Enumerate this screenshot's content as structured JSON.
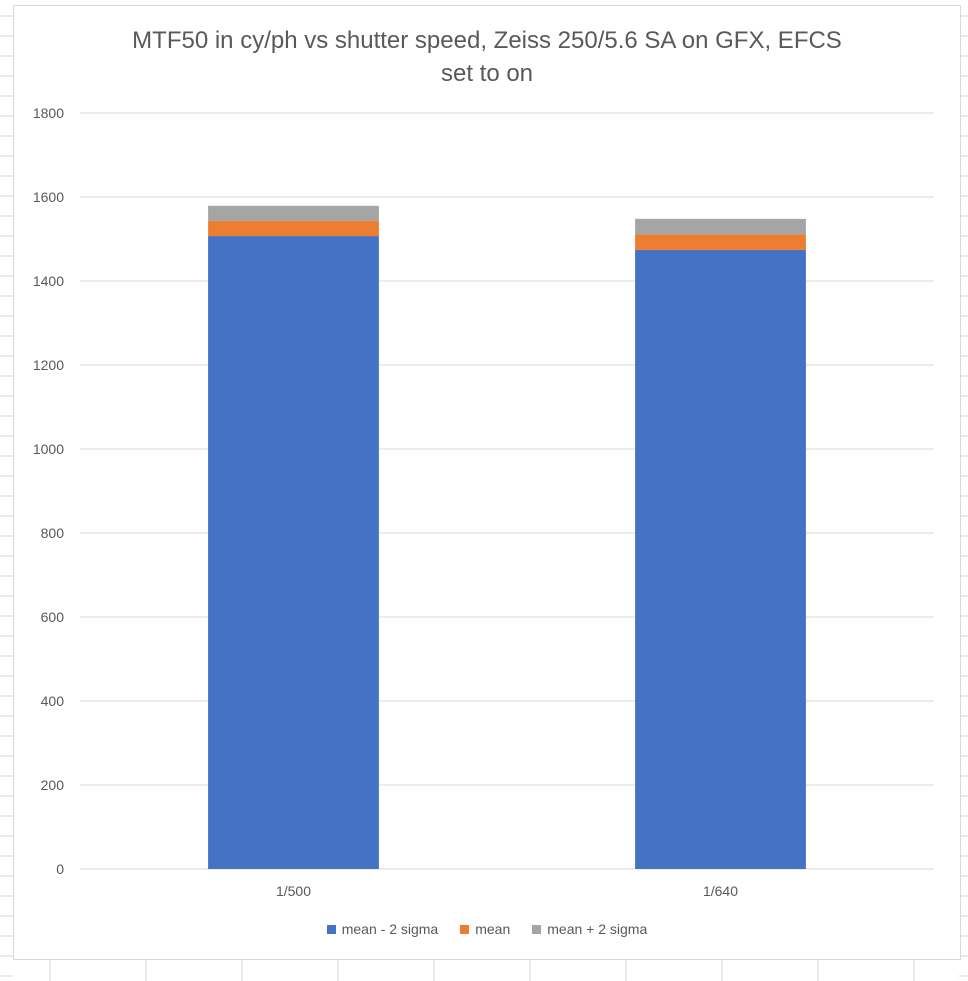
{
  "chart_data": {
    "type": "bar",
    "stacked": true,
    "title": "MTF50 in cy/ph vs shutter speed, Zeiss 250/5.6 SA on GFX, EFCS set to on",
    "title_lines": [
      "MTF50 in cy/ph vs shutter speed, Zeiss 250/5.6 SA on GFX, EFCS",
      "set to on"
    ],
    "xlabel": "",
    "ylabel": "",
    "categories": [
      "1/500",
      "1/640"
    ],
    "ylim": [
      0,
      1800
    ],
    "yticks": [
      0,
      200,
      400,
      600,
      800,
      1000,
      1200,
      1400,
      1600,
      1800
    ],
    "grid": true,
    "legend_position": "bottom",
    "series": [
      {
        "name": "mean - 2 sigma",
        "color": "#4472c4",
        "values": [
          1507,
          1474
        ]
      },
      {
        "name": "mean",
        "color": "#ed7d31",
        "values": [
          36,
          37
        ]
      },
      {
        "name": "mean + 2 sigma",
        "color": "#a5a5a5",
        "values": [
          36,
          37
        ]
      }
    ]
  }
}
